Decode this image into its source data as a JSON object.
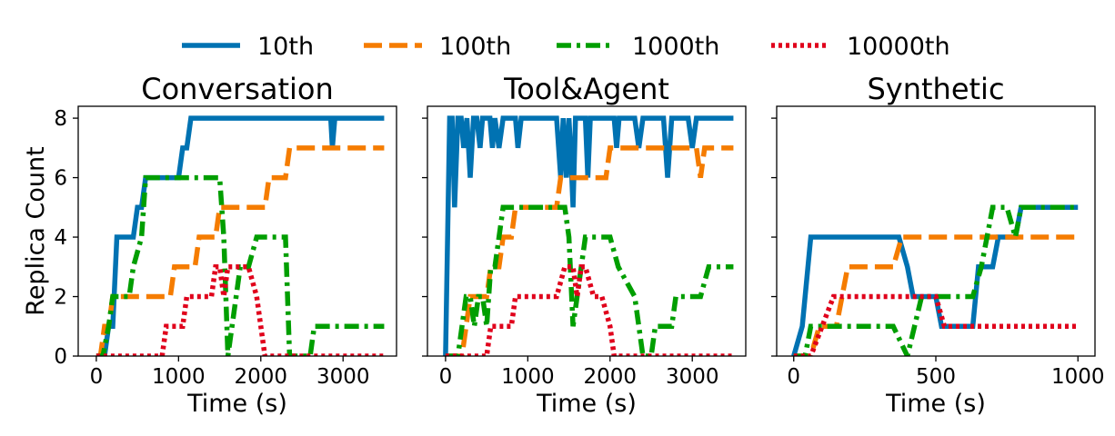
{
  "legend": [
    {
      "label": "10th",
      "color": "#0072B2",
      "dash": "solid"
    },
    {
      "label": "100th",
      "color": "#F57C00",
      "dash": "dashed"
    },
    {
      "label": "1000th",
      "color": "#009E00",
      "dash": "dashdot"
    },
    {
      "label": "10000th",
      "color": "#E0001B",
      "dash": "dotted"
    }
  ],
  "chart_data": [
    {
      "type": "line",
      "title": "Conversation",
      "xlabel": "Time (s)",
      "ylabel": "Replica Count",
      "xlim": [
        -220,
        3650
      ],
      "ylim": [
        0,
        8.4
      ],
      "xticks": [
        0,
        1000,
        2000,
        3000
      ],
      "xtick_labels": [
        "0",
        "1000",
        "2000",
        "3000"
      ],
      "yticks": [
        0,
        2,
        4,
        6,
        8
      ],
      "ytick_labels": [
        "0",
        "2",
        "4",
        "6",
        "8"
      ],
      "series": [
        {
          "name": "10th",
          "points": [
            [
              0,
              0
            ],
            [
              100,
              0
            ],
            [
              150,
              1
            ],
            [
              200,
              1
            ],
            [
              250,
              4
            ],
            [
              450,
              4
            ],
            [
              500,
              5
            ],
            [
              550,
              5
            ],
            [
              600,
              6
            ],
            [
              1000,
              6
            ],
            [
              1050,
              7
            ],
            [
              1100,
              7
            ],
            [
              1150,
              8
            ],
            [
              2850,
              8
            ],
            [
              2870,
              7
            ],
            [
              2900,
              8
            ],
            [
              3500,
              8
            ]
          ]
        },
        {
          "name": "100th",
          "points": [
            [
              0,
              0
            ],
            [
              50,
              0
            ],
            [
              100,
              1
            ],
            [
              150,
              1
            ],
            [
              200,
              2
            ],
            [
              550,
              2
            ],
            [
              600,
              2
            ],
            [
              900,
              2
            ],
            [
              950,
              3
            ],
            [
              1200,
              3
            ],
            [
              1250,
              4
            ],
            [
              1450,
              4
            ],
            [
              1500,
              5
            ],
            [
              2050,
              5
            ],
            [
              2100,
              6
            ],
            [
              2300,
              6
            ],
            [
              2350,
              7
            ],
            [
              3500,
              7
            ]
          ]
        },
        {
          "name": "1000th",
          "points": [
            [
              0,
              0
            ],
            [
              80,
              0
            ],
            [
              150,
              1
            ],
            [
              200,
              2
            ],
            [
              250,
              2
            ],
            [
              400,
              2
            ],
            [
              450,
              3
            ],
            [
              550,
              4
            ],
            [
              600,
              6
            ],
            [
              1350,
              6
            ],
            [
              1500,
              6
            ],
            [
              1550,
              4
            ],
            [
              1600,
              0
            ],
            [
              1700,
              2
            ],
            [
              1750,
              3
            ],
            [
              1850,
              3
            ],
            [
              1950,
              4
            ],
            [
              2300,
              4
            ],
            [
              2350,
              0
            ],
            [
              2600,
              0
            ],
            [
              2650,
              1
            ],
            [
              3500,
              1
            ]
          ]
        },
        {
          "name": "10000th",
          "points": [
            [
              0,
              0
            ],
            [
              800,
              0
            ],
            [
              850,
              1
            ],
            [
              1050,
              1
            ],
            [
              1100,
              2
            ],
            [
              1400,
              2
            ],
            [
              1450,
              3
            ],
            [
              1500,
              3
            ],
            [
              1550,
              2
            ],
            [
              1600,
              3
            ],
            [
              1800,
              3
            ],
            [
              1850,
              3
            ],
            [
              1950,
              2
            ],
            [
              2000,
              1
            ],
            [
              2050,
              0
            ],
            [
              3500,
              0
            ]
          ]
        }
      ]
    },
    {
      "type": "line",
      "title": "Tool&Agent",
      "xlabel": "Time (s)",
      "ylabel": "",
      "xlim": [
        -220,
        3650
      ],
      "ylim": [
        0,
        8.4
      ],
      "xticks": [
        0,
        1000,
        2000,
        3000
      ],
      "xtick_labels": [
        "0",
        "1000",
        "2000",
        "3000"
      ],
      "yticks": [
        0,
        2,
        4,
        6,
        8
      ],
      "ytick_labels": [
        "",
        "",
        "",
        "",
        ""
      ],
      "series": [
        {
          "name": "10th",
          "points": [
            [
              0,
              0
            ],
            [
              50,
              8
            ],
            [
              80,
              8
            ],
            [
              110,
              5
            ],
            [
              150,
              8
            ],
            [
              190,
              8
            ],
            [
              220,
              7
            ],
            [
              260,
              8
            ],
            [
              300,
              6
            ],
            [
              340,
              8
            ],
            [
              380,
              8
            ],
            [
              420,
              7
            ],
            [
              450,
              8
            ],
            [
              540,
              8
            ],
            [
              570,
              7
            ],
            [
              600,
              8
            ],
            [
              650,
              7
            ],
            [
              700,
              8
            ],
            [
              850,
              8
            ],
            [
              880,
              7
            ],
            [
              920,
              8
            ],
            [
              1350,
              8
            ],
            [
              1400,
              6
            ],
            [
              1430,
              8
            ],
            [
              1470,
              6
            ],
            [
              1500,
              8
            ],
            [
              1520,
              7
            ],
            [
              1550,
              5
            ],
            [
              1580,
              8
            ],
            [
              1700,
              8
            ],
            [
              1730,
              6
            ],
            [
              1760,
              8
            ],
            [
              2050,
              8
            ],
            [
              2080,
              7
            ],
            [
              2110,
              8
            ],
            [
              2300,
              8
            ],
            [
              2350,
              7
            ],
            [
              2400,
              8
            ],
            [
              2650,
              8
            ],
            [
              2700,
              6
            ],
            [
              2750,
              8
            ],
            [
              2950,
              8
            ],
            [
              3000,
              7
            ],
            [
              3050,
              8
            ],
            [
              3500,
              8
            ]
          ]
        },
        {
          "name": "100th",
          "points": [
            [
              0,
              0
            ],
            [
              200,
              0
            ],
            [
              250,
              1
            ],
            [
              300,
              2
            ],
            [
              500,
              2
            ],
            [
              550,
              3
            ],
            [
              650,
              3
            ],
            [
              700,
              4
            ],
            [
              800,
              4
            ],
            [
              850,
              5
            ],
            [
              1350,
              5
            ],
            [
              1400,
              6
            ],
            [
              1900,
              6
            ],
            [
              1950,
              6
            ],
            [
              2000,
              7
            ],
            [
              3050,
              7
            ],
            [
              3100,
              6
            ],
            [
              3150,
              7
            ],
            [
              3500,
              7
            ]
          ]
        },
        {
          "name": "1000th",
          "points": [
            [
              0,
              0
            ],
            [
              150,
              0
            ],
            [
              200,
              1
            ],
            [
              250,
              2
            ],
            [
              300,
              2
            ],
            [
              350,
              1
            ],
            [
              400,
              2
            ],
            [
              450,
              2
            ],
            [
              500,
              1
            ],
            [
              550,
              3
            ],
            [
              600,
              3
            ],
            [
              650,
              4
            ],
            [
              700,
              5
            ],
            [
              1300,
              5
            ],
            [
              1450,
              5
            ],
            [
              1500,
              4
            ],
            [
              1550,
              1
            ],
            [
              1600,
              2
            ],
            [
              1650,
              3
            ],
            [
              1700,
              4
            ],
            [
              2000,
              4
            ],
            [
              2100,
              3
            ],
            [
              2300,
              2
            ],
            [
              2350,
              1
            ],
            [
              2400,
              0
            ],
            [
              2500,
              0
            ],
            [
              2550,
              1
            ],
            [
              2750,
              1
            ],
            [
              2800,
              2
            ],
            [
              3000,
              2
            ],
            [
              3100,
              2
            ],
            [
              3200,
              3
            ],
            [
              3500,
              3
            ]
          ]
        },
        {
          "name": "10000th",
          "points": [
            [
              0,
              0
            ],
            [
              500,
              0
            ],
            [
              550,
              1
            ],
            [
              800,
              1
            ],
            [
              850,
              2
            ],
            [
              1150,
              2
            ],
            [
              1200,
              2
            ],
            [
              1300,
              2
            ],
            [
              1350,
              2
            ],
            [
              1450,
              3
            ],
            [
              1550,
              3
            ],
            [
              1600,
              2
            ],
            [
              1650,
              3
            ],
            [
              1700,
              3
            ],
            [
              1800,
              2
            ],
            [
              1900,
              2
            ],
            [
              2000,
              1
            ],
            [
              2050,
              0
            ],
            [
              3500,
              0
            ]
          ]
        }
      ]
    },
    {
      "type": "line",
      "title": "Synthetic",
      "xlabel": "Time (s)",
      "ylabel": "",
      "xlim": [
        -60,
        1060
      ],
      "ylim": [
        0,
        8.4
      ],
      "xticks": [
        0,
        500,
        1000
      ],
      "xtick_labels": [
        "0",
        "500",
        "1000"
      ],
      "yticks": [
        0,
        2,
        4,
        6,
        8
      ],
      "ytick_labels": [
        "",
        "",
        "",
        "",
        ""
      ],
      "series": [
        {
          "name": "10th",
          "points": [
            [
              0,
              0
            ],
            [
              30,
              1
            ],
            [
              60,
              4
            ],
            [
              370,
              4
            ],
            [
              400,
              3
            ],
            [
              420,
              2
            ],
            [
              480,
              2
            ],
            [
              500,
              2
            ],
            [
              520,
              1
            ],
            [
              560,
              1
            ],
            [
              630,
              1
            ],
            [
              650,
              3
            ],
            [
              700,
              3
            ],
            [
              720,
              4
            ],
            [
              780,
              4
            ],
            [
              800,
              5
            ],
            [
              1000,
              5
            ]
          ]
        },
        {
          "name": "100th",
          "points": [
            [
              0,
              0
            ],
            [
              60,
              0
            ],
            [
              90,
              1
            ],
            [
              150,
              1
            ],
            [
              170,
              2
            ],
            [
              190,
              3
            ],
            [
              350,
              3
            ],
            [
              380,
              4
            ],
            [
              1000,
              4
            ]
          ]
        },
        {
          "name": "1000th",
          "points": [
            [
              0,
              0
            ],
            [
              40,
              0
            ],
            [
              60,
              1
            ],
            [
              350,
              1
            ],
            [
              400,
              0
            ],
            [
              450,
              2
            ],
            [
              500,
              2
            ],
            [
              520,
              2
            ],
            [
              570,
              2
            ],
            [
              630,
              2
            ],
            [
              660,
              3
            ],
            [
              680,
              4
            ],
            [
              700,
              5
            ],
            [
              750,
              5
            ],
            [
              780,
              4
            ],
            [
              800,
              5
            ],
            [
              1000,
              5
            ]
          ]
        },
        {
          "name": "10000th",
          "points": [
            [
              0,
              0
            ],
            [
              60,
              0
            ],
            [
              100,
              1
            ],
            [
              140,
              2
            ],
            [
              420,
              2
            ],
            [
              500,
              2
            ],
            [
              530,
              1
            ],
            [
              1000,
              1
            ]
          ]
        }
      ]
    }
  ]
}
